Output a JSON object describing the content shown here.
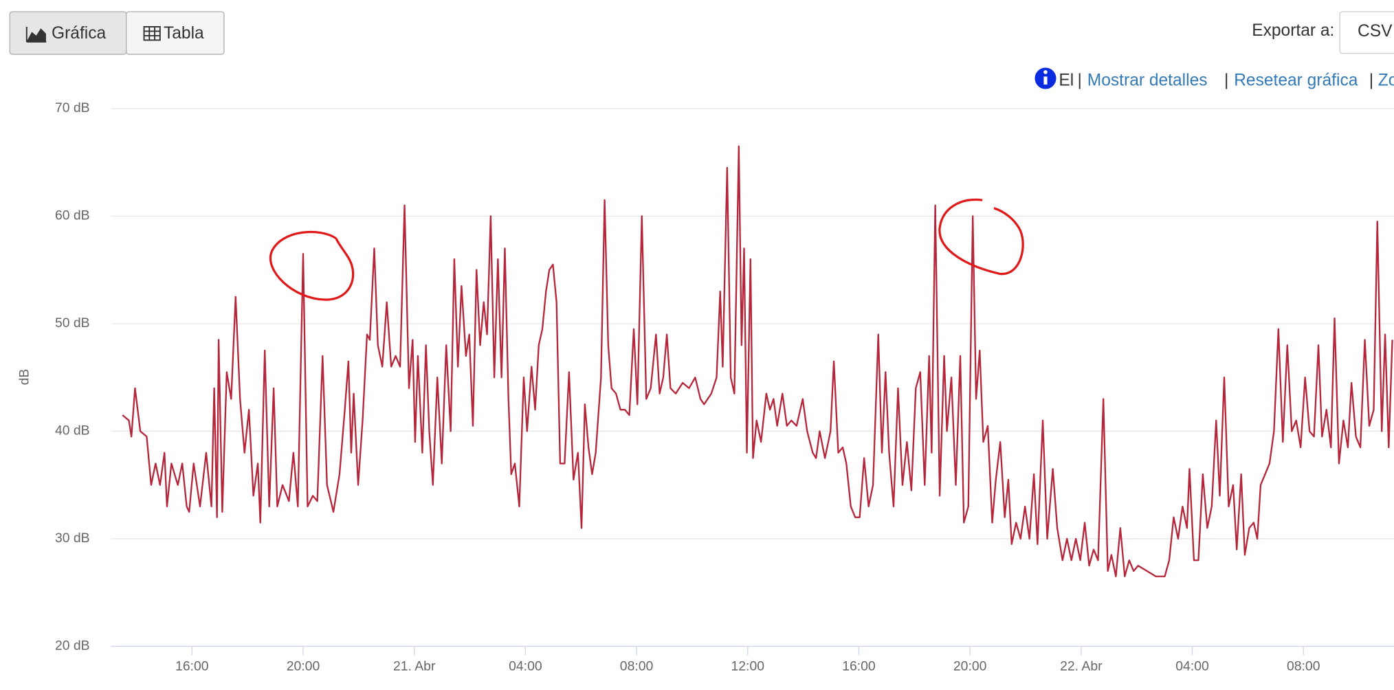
{
  "toolbar": {
    "tabs": [
      "Gráfica",
      "Tabla"
    ],
    "export_label": "Exportar a:",
    "export_format": "CSV"
  },
  "info_bar": {
    "text": "El",
    "separator": "|",
    "links": [
      "Mostrar detalles",
      "Resetear gráfica",
      "Zo"
    ]
  },
  "chart_data": {
    "type": "line",
    "y_label": "dB",
    "color": "#b5263a",
    "grid": true,
    "xlim": [
      13.09,
      59.26
    ],
    "ylim": [
      20,
      70
    ],
    "yticks": [
      {
        "value": 20,
        "label": "20 dB"
      },
      {
        "value": 30,
        "label": "30 dB"
      },
      {
        "value": 40,
        "label": "40 dB"
      },
      {
        "value": 50,
        "label": "50 dB"
      },
      {
        "value": 60,
        "label": "60 dB"
      },
      {
        "value": 70,
        "label": "70 dB"
      }
    ],
    "xticks": [
      {
        "value": 16,
        "label": "16:00"
      },
      {
        "value": 20,
        "label": "20:00"
      },
      {
        "value": 24,
        "label": "21. Abr"
      },
      {
        "value": 28,
        "label": "04:00"
      },
      {
        "value": 32,
        "label": "08:00"
      },
      {
        "value": 36,
        "label": "12:00"
      },
      {
        "value": 40,
        "label": "16:00"
      },
      {
        "value": 44,
        "label": "20:00"
      },
      {
        "value": 48,
        "label": "22. Abr"
      },
      {
        "value": 52,
        "label": "04:00"
      },
      {
        "value": 56,
        "label": "08:00"
      }
    ],
    "x": [
      13.5,
      13.73,
      13.82,
      13.95,
      14.14,
      14.37,
      14.53,
      14.69,
      14.85,
      15.01,
      15.1,
      15.26,
      15.49,
      15.65,
      15.81,
      15.9,
      16.06,
      16.29,
      16.51,
      16.7,
      16.8,
      16.9,
      16.96,
      17.09,
      17.25,
      17.41,
      17.57,
      17.73,
      17.89,
      18.05,
      18.21,
      18.37,
      18.46,
      18.62,
      18.78,
      18.94,
      19.07,
      19.26,
      19.49,
      19.65,
      19.81,
      20.0,
      20.16,
      20.35,
      20.51,
      20.7,
      20.86,
      21.09,
      21.31,
      21.5,
      21.63,
      21.73,
      21.82,
      21.98,
      22.14,
      22.3,
      22.4,
      22.56,
      22.69,
      22.85,
      23.01,
      23.17,
      23.33,
      23.49,
      23.65,
      23.81,
      23.94,
      24.03,
      24.13,
      24.29,
      24.42,
      24.54,
      24.67,
      24.83,
      24.99,
      25.15,
      25.31,
      25.44,
      25.57,
      25.7,
      25.86,
      25.98,
      26.11,
      26.24,
      26.37,
      26.5,
      26.62,
      26.75,
      26.88,
      27.01,
      27.14,
      27.26,
      27.39,
      27.49,
      27.62,
      27.78,
      27.94,
      28.06,
      28.22,
      28.35,
      28.48,
      28.61,
      28.74,
      28.86,
      28.99,
      29.12,
      29.25,
      29.41,
      29.57,
      29.73,
      29.89,
      30.02,
      30.14,
      30.27,
      30.4,
      30.53,
      30.72,
      30.85,
      30.98,
      31.1,
      31.26,
      31.42,
      31.58,
      31.74,
      31.9,
      32.03,
      32.19,
      32.35,
      32.51,
      32.7,
      32.83,
      32.96,
      33.09,
      33.22,
      33.41,
      33.66,
      33.89,
      34.11,
      34.3,
      34.43,
      34.69,
      34.88,
      35.01,
      35.1,
      35.26,
      35.39,
      35.52,
      35.68,
      35.78,
      35.87,
      35.97,
      36.1,
      36.19,
      36.32,
      36.48,
      36.67,
      36.8,
      36.93,
      37.06,
      37.25,
      37.41,
      37.57,
      37.76,
      37.98,
      38.14,
      38.34,
      38.46,
      38.59,
      38.78,
      38.98,
      39.1,
      39.26,
      39.42,
      39.55,
      39.71,
      39.87,
      40.03,
      40.19,
      40.35,
      40.51,
      40.7,
      40.83,
      40.96,
      41.09,
      41.25,
      41.41,
      41.57,
      41.73,
      41.89,
      42.05,
      42.21,
      42.37,
      42.53,
      42.62,
      42.75,
      42.91,
      43.07,
      43.17,
      43.33,
      43.49,
      43.65,
      43.78,
      43.94,
      44.1,
      44.22,
      44.35,
      44.48,
      44.64,
      44.8,
      44.93,
      45.09,
      45.25,
      45.38,
      45.5,
      45.66,
      45.82,
      45.98,
      46.14,
      46.3,
      46.43,
      46.62,
      46.78,
      46.98,
      47.14,
      47.33,
      47.49,
      47.65,
      47.81,
      47.97,
      48.13,
      48.29,
      48.45,
      48.61,
      48.8,
      48.96,
      49.09,
      49.25,
      49.41,
      49.57,
      49.73,
      49.89,
      50.05,
      50.37,
      50.69,
      51.01,
      51.17,
      51.33,
      51.49,
      51.65,
      51.81,
      51.9,
      52.06,
      52.22,
      52.38,
      52.54,
      52.7,
      52.86,
      52.99,
      53.15,
      53.31,
      53.47,
      53.6,
      53.76,
      53.89,
      54.05,
      54.21,
      54.34,
      54.46,
      54.62,
      54.78,
      54.94,
      55.1,
      55.26,
      55.42,
      55.58,
      55.74,
      55.9,
      56.06,
      56.22,
      56.38,
      56.54,
      56.67,
      56.83,
      56.99,
      57.12,
      57.28,
      57.44,
      57.6,
      57.73,
      57.89,
      58.05,
      58.21,
      58.37,
      58.53,
      58.66,
      58.82,
      58.94,
      59.07,
      59.2
    ],
    "values": [
      41.5,
      41,
      39.5,
      44,
      40,
      39.5,
      35,
      37,
      35,
      38,
      33,
      37,
      35,
      37,
      33,
      32.5,
      37,
      33,
      38,
      33,
      44,
      32,
      48.5,
      32.5,
      45.5,
      43,
      52.5,
      43,
      38,
      42,
      34,
      37,
      31.5,
      47.5,
      33,
      44,
      33,
      35,
      33.5,
      38,
      33,
      56.5,
      33,
      34,
      33.5,
      47,
      35,
      32.5,
      36,
      42,
      46.5,
      38,
      43.5,
      35,
      41,
      49,
      48.5,
      57,
      48,
      46,
      52,
      46,
      47,
      46,
      61,
      44,
      48.5,
      39,
      47,
      38,
      48,
      40,
      35,
      45,
      37,
      48,
      40,
      56,
      46,
      53.5,
      47,
      49,
      40.5,
      55,
      48,
      52,
      49,
      60,
      45,
      56,
      45,
      57,
      43,
      36,
      37,
      33,
      45,
      40,
      46,
      42,
      48,
      49.5,
      53,
      55,
      55.5,
      52,
      37,
      37,
      45.5,
      35.5,
      38,
      31,
      42.5,
      38.5,
      36,
      38,
      45,
      61.5,
      48,
      44,
      43.5,
      42,
      42,
      41.5,
      49.5,
      42.5,
      60,
      43,
      44,
      49,
      43.5,
      45,
      49,
      44,
      43.5,
      44.5,
      44,
      45,
      43,
      42.5,
      43.5,
      45,
      53,
      46,
      64.5,
      45,
      43.5,
      66.5,
      48,
      57,
      38,
      56,
      37.5,
      41,
      39,
      43.5,
      42,
      43,
      40.5,
      43.5,
      40.5,
      41,
      40.5,
      43,
      40,
      38,
      37.5,
      40,
      37.5,
      40,
      46.5,
      38,
      38.5,
      37,
      33,
      32,
      32,
      37.5,
      33,
      35,
      49,
      38,
      45.5,
      38,
      33,
      44,
      35,
      39,
      34.5,
      44,
      45.5,
      35,
      47,
      38,
      61,
      34,
      47,
      40,
      45,
      35,
      47,
      31.5,
      33,
      60,
      43,
      47.5,
      39,
      40.5,
      31.5,
      35.5,
      39,
      32,
      35.5,
      29.5,
      31.5,
      30,
      33,
      30,
      36,
      29.5,
      41,
      30,
      36.5,
      31,
      28,
      30,
      28,
      30,
      28,
      31.5,
      27.5,
      29,
      28,
      43,
      27,
      28.5,
      26.5,
      31,
      26.5,
      28,
      27,
      27.5,
      27,
      26.5,
      26.5,
      28,
      32,
      30,
      33,
      31,
      36.5,
      28,
      28,
      36,
      31,
      33,
      41,
      34,
      45,
      33,
      35,
      29,
      36,
      28.5,
      31,
      31.5,
      30,
      35,
      36,
      37,
      40,
      49.5,
      39,
      48,
      40,
      41,
      38.5,
      45,
      40,
      39.5,
      48,
      39.5,
      42,
      38.5,
      50.5,
      37,
      41,
      38.5,
      44.5,
      39.5,
      38.5,
      48.5,
      40.5,
      42,
      59.5,
      40,
      49,
      38.5,
      48.5
    ]
  }
}
